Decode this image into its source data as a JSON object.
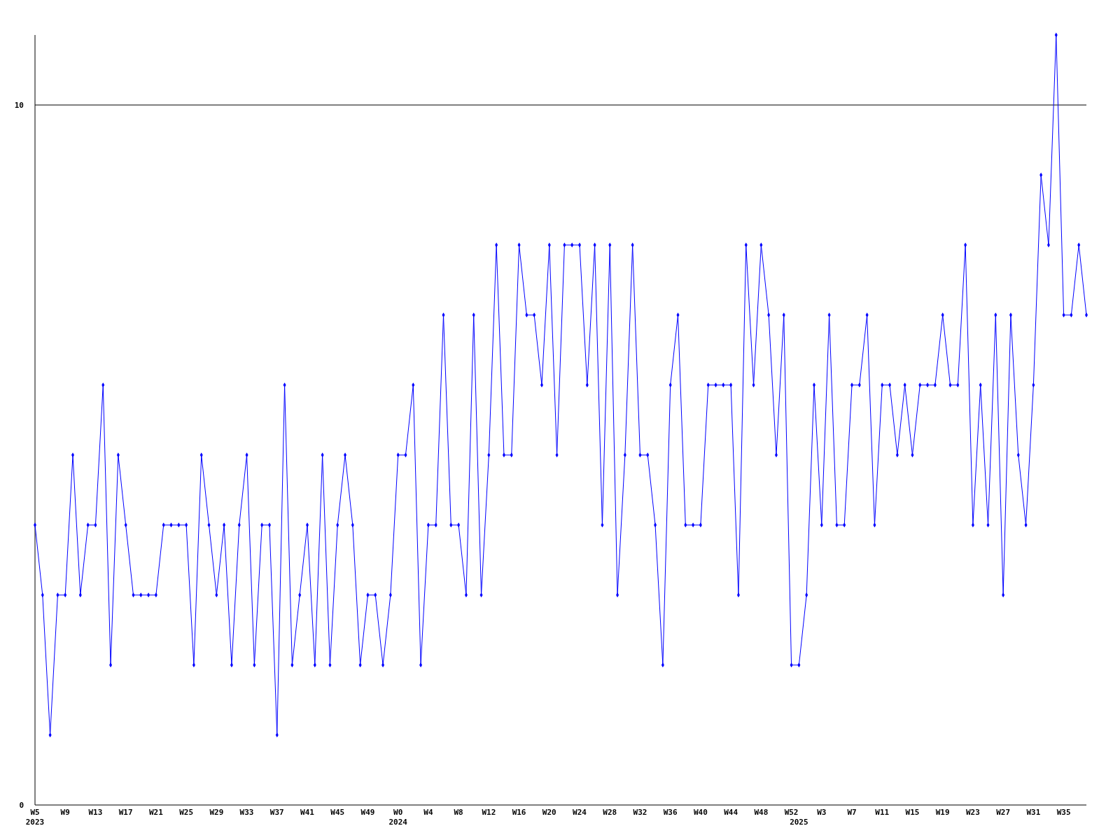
{
  "chart_data": {
    "type": "line",
    "categories": [
      "W5\n2023",
      null,
      null,
      null,
      "W9",
      null,
      null,
      null,
      "W13",
      null,
      null,
      null,
      "W17",
      null,
      null,
      null,
      "W21",
      null,
      null,
      null,
      "W25",
      null,
      null,
      null,
      "W29",
      null,
      null,
      null,
      "W33",
      null,
      null,
      null,
      "W37",
      null,
      null,
      null,
      "W41",
      null,
      null,
      null,
      "W45",
      null,
      null,
      null,
      "W49",
      null,
      null,
      null,
      "W0\n2024",
      null,
      null,
      null,
      "W4",
      null,
      null,
      null,
      "W8",
      null,
      null,
      null,
      "W12",
      null,
      null,
      null,
      "W16",
      null,
      null,
      null,
      "W20",
      null,
      null,
      null,
      "W24",
      null,
      null,
      null,
      "W28",
      null,
      null,
      null,
      "W32",
      null,
      null,
      null,
      "W36",
      null,
      null,
      null,
      "W40",
      null,
      null,
      null,
      "W44",
      null,
      null,
      null,
      "W48",
      null,
      null,
      null,
      "W52",
      "\n2025",
      null,
      null,
      "W3",
      null,
      null,
      null,
      "W7",
      null,
      null,
      null,
      "W11",
      null,
      null,
      null,
      "W15",
      null,
      null,
      null,
      "W19",
      null,
      null,
      null,
      "W23",
      null,
      null,
      null,
      "W27",
      null,
      null,
      null,
      "W31",
      null,
      null,
      null,
      "W35",
      null,
      null,
      null
    ],
    "series": [
      {
        "color": "#0000ff",
        "values": [
          4,
          3,
          1,
          3,
          3,
          5,
          3,
          4,
          4,
          6,
          2,
          5,
          4,
          3,
          3,
          3,
          3,
          4,
          4,
          4,
          4,
          2,
          5,
          4,
          3,
          4,
          2,
          4,
          5,
          2,
          4,
          4,
          1,
          6,
          2,
          3,
          4,
          2,
          5,
          2,
          4,
          5,
          4,
          2,
          3,
          3,
          2,
          3,
          5,
          5,
          6,
          2,
          4,
          4,
          7,
          4,
          4,
          3,
          7,
          3,
          5,
          8,
          5,
          5,
          8,
          7,
          7,
          6,
          8,
          5,
          8,
          8,
          8,
          6,
          8,
          4,
          8,
          3,
          5,
          8,
          5,
          5,
          4,
          2,
          6,
          7,
          4,
          4,
          4,
          6,
          6,
          6,
          6,
          3,
          8,
          6,
          8,
          7,
          5,
          7,
          2,
          2,
          3,
          6,
          4,
          7,
          4,
          4,
          6,
          6,
          7,
          4,
          6,
          6,
          5,
          6,
          5,
          6,
          6,
          6,
          7,
          6,
          6,
          8,
          4,
          6,
          4,
          7,
          3,
          7,
          5,
          4,
          6,
          9,
          8,
          11,
          7,
          7,
          8,
          7
        ]
      }
    ],
    "ylim": [
      0,
      11
    ],
    "yticks": [
      0,
      10
    ],
    "grid": "y",
    "marker": "diamond",
    "line_style": "solid"
  }
}
